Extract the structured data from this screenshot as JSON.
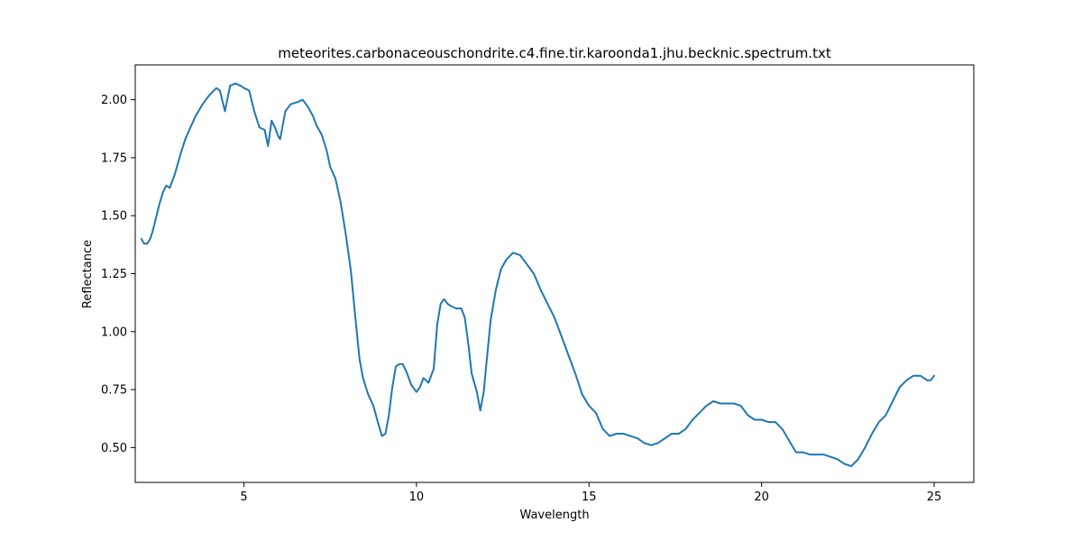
{
  "chart_data": {
    "type": "line",
    "title": "meteorites.carbonaceouschondrite.c4.fine.tir.karoonda1.jhu.becknic.spectrum.txt",
    "xlabel": "Wavelength",
    "ylabel": "Reflectance",
    "xlim": [
      1.85,
      26.15
    ],
    "ylim": [
      0.35,
      2.15
    ],
    "xticks": [
      5,
      10,
      15,
      20,
      25
    ],
    "xtick_labels": [
      "5",
      "10",
      "15",
      "20",
      "25"
    ],
    "yticks": [
      0.5,
      0.75,
      1.0,
      1.25,
      1.5,
      1.75,
      2.0
    ],
    "ytick_labels": [
      "0.50",
      "0.75",
      "1.00",
      "1.25",
      "1.50",
      "1.75",
      "2.00"
    ],
    "grid": false,
    "legend": "none",
    "series": [
      {
        "color": "#1f77b4",
        "x": [
          2.03,
          2.1,
          2.15,
          2.2,
          2.28,
          2.35,
          2.45,
          2.55,
          2.65,
          2.75,
          2.85,
          3.0,
          3.15,
          3.3,
          3.45,
          3.6,
          3.8,
          4.0,
          4.2,
          4.3,
          4.45,
          4.6,
          4.75,
          4.9,
          5.0,
          5.15,
          5.3,
          5.45,
          5.6,
          5.7,
          5.8,
          5.9,
          6.0,
          6.05,
          6.2,
          6.35,
          6.55,
          6.7,
          6.85,
          7.0,
          7.1,
          7.25,
          7.4,
          7.5,
          7.65,
          7.8,
          7.95,
          8.1,
          8.25,
          8.35,
          8.45,
          8.6,
          8.75,
          8.9,
          9.0,
          9.1,
          9.2,
          9.3,
          9.4,
          9.5,
          9.6,
          9.7,
          9.85,
          10.0,
          10.1,
          10.2,
          10.35,
          10.5,
          10.6,
          10.7,
          10.8,
          10.9,
          11.0,
          11.15,
          11.3,
          11.4,
          11.5,
          11.6,
          11.75,
          11.85,
          11.95,
          12.05,
          12.15,
          12.3,
          12.45,
          12.6,
          12.8,
          13.0,
          13.2,
          13.4,
          13.6,
          13.8,
          14.0,
          14.2,
          14.4,
          14.6,
          14.8,
          15.0,
          15.2,
          15.4,
          15.6,
          15.8,
          16.0,
          16.2,
          16.4,
          16.6,
          16.8,
          17.0,
          17.2,
          17.4,
          17.6,
          17.8,
          18.0,
          18.2,
          18.4,
          18.6,
          18.8,
          19.0,
          19.2,
          19.4,
          19.6,
          19.8,
          20.0,
          20.2,
          20.4,
          20.6,
          20.8,
          21.0,
          21.2,
          21.4,
          21.6,
          21.8,
          22.0,
          22.2,
          22.4,
          22.6,
          22.8,
          23.0,
          23.2,
          23.4,
          23.6,
          23.8,
          24.0,
          24.2,
          24.4,
          24.6,
          24.8,
          24.9,
          25.0
        ],
        "y": [
          1.4,
          1.38,
          1.38,
          1.38,
          1.4,
          1.43,
          1.49,
          1.55,
          1.6,
          1.63,
          1.62,
          1.68,
          1.76,
          1.83,
          1.88,
          1.93,
          1.98,
          2.02,
          2.05,
          2.04,
          1.95,
          2.06,
          2.07,
          2.06,
          2.05,
          2.04,
          1.95,
          1.88,
          1.87,
          1.8,
          1.91,
          1.88,
          1.84,
          1.83,
          1.95,
          1.98,
          1.99,
          2.0,
          1.97,
          1.93,
          1.89,
          1.85,
          1.78,
          1.71,
          1.66,
          1.56,
          1.42,
          1.26,
          1.03,
          0.88,
          0.8,
          0.73,
          0.68,
          0.6,
          0.55,
          0.56,
          0.64,
          0.76,
          0.85,
          0.86,
          0.86,
          0.83,
          0.77,
          0.74,
          0.76,
          0.8,
          0.78,
          0.84,
          1.03,
          1.12,
          1.14,
          1.12,
          1.11,
          1.1,
          1.1,
          1.06,
          0.95,
          0.82,
          0.74,
          0.66,
          0.74,
          0.9,
          1.05,
          1.18,
          1.27,
          1.31,
          1.34,
          1.33,
          1.29,
          1.25,
          1.18,
          1.12,
          1.06,
          0.98,
          0.9,
          0.82,
          0.73,
          0.68,
          0.65,
          0.58,
          0.55,
          0.56,
          0.56,
          0.55,
          0.54,
          0.52,
          0.51,
          0.52,
          0.54,
          0.56,
          0.56,
          0.58,
          0.62,
          0.65,
          0.68,
          0.7,
          0.69,
          0.69,
          0.69,
          0.68,
          0.64,
          0.62,
          0.62,
          0.61,
          0.61,
          0.58,
          0.53,
          0.48,
          0.48,
          0.47,
          0.47,
          0.47,
          0.46,
          0.45,
          0.43,
          0.42,
          0.45,
          0.5,
          0.56,
          0.61,
          0.64,
          0.7,
          0.76,
          0.79,
          0.81,
          0.81,
          0.79,
          0.79,
          0.81
        ]
      }
    ]
  }
}
